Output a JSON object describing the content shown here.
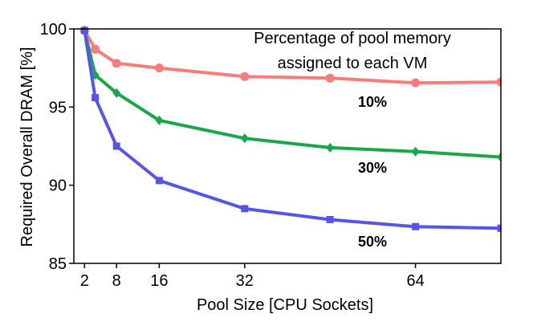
{
  "chart_data": {
    "type": "line",
    "xlabel": "Pool Size [CPU Sockets]",
    "ylabel": "Required Overall DRAM [%]",
    "xlim": [
      0,
      80
    ],
    "ylim": [
      85,
      100
    ],
    "xticks": [
      2,
      8,
      16,
      32,
      64
    ],
    "xtick_labels": [
      "2",
      "8",
      "16",
      "32",
      "64"
    ],
    "yticks": [
      85,
      90,
      95,
      100
    ],
    "ytick_labels": [
      "85",
      "90",
      "95",
      "100"
    ],
    "grid": false,
    "annotation_title_lines": [
      "Percentage of pool memory",
      "assigned to each VM"
    ],
    "series": [
      {
        "name": "10%",
        "color": "#f87c7a",
        "marker": "circle",
        "x": [
          2,
          4,
          8,
          16,
          32,
          48,
          64,
          80
        ],
        "y": [
          99.9,
          98.7,
          97.8,
          97.5,
          96.95,
          96.85,
          96.55,
          96.6
        ]
      },
      {
        "name": "30%",
        "color": "#1aa64a",
        "marker": "diamond",
        "x": [
          2,
          4,
          8,
          16,
          32,
          48,
          64,
          80
        ],
        "y": [
          99.9,
          97.05,
          95.9,
          94.15,
          93.0,
          92.4,
          92.15,
          91.8
        ]
      },
      {
        "name": "50%",
        "color": "#5555ee",
        "marker": "square",
        "x": [
          2,
          4,
          8,
          16,
          32,
          48,
          64,
          80
        ],
        "y": [
          99.9,
          95.6,
          92.5,
          90.3,
          88.5,
          87.8,
          87.35,
          87.25
        ]
      }
    ]
  }
}
